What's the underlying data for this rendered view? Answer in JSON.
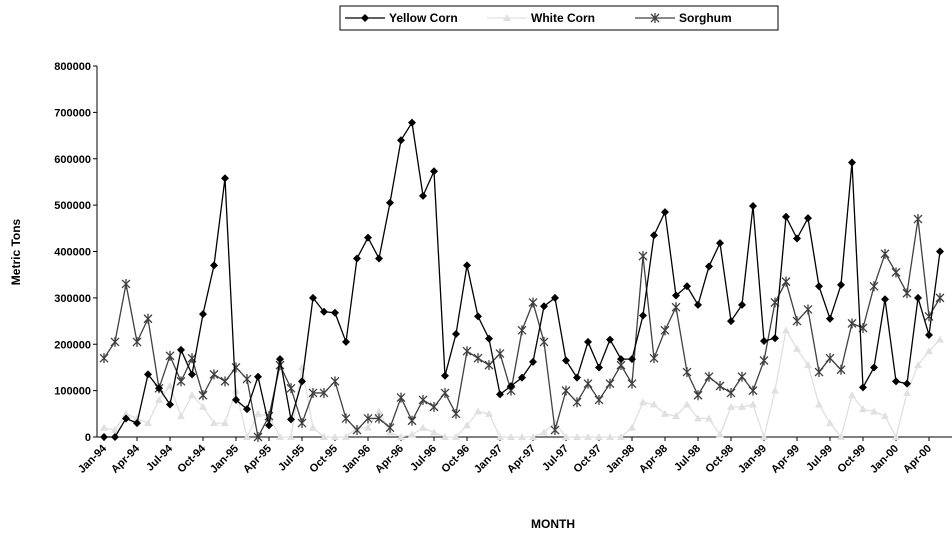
{
  "chart_data": {
    "type": "line",
    "x_label": "MONTH",
    "y_label": "Metric Tons",
    "categories": [
      "Jan-94",
      null,
      null,
      "Apr-94",
      null,
      null,
      "Jul-94",
      null,
      null,
      "Oct-94",
      null,
      null,
      "Jan-95",
      null,
      null,
      "Apr-95",
      null,
      null,
      "Jul-95",
      null,
      null,
      "Oct-95",
      null,
      null,
      "Jan-96",
      null,
      null,
      "Apr-96",
      null,
      null,
      "Jul-96",
      null,
      null,
      "Oct-96",
      null,
      null,
      "Jan-97",
      null,
      null,
      "Apr-97",
      null,
      null,
      "Jul-97",
      null,
      null,
      "Oct-97",
      null,
      null,
      "Jan-98",
      null,
      null,
      "Apr-98",
      null,
      null,
      "Jul-98",
      null,
      null,
      "Oct-98",
      null,
      null,
      "Jan-99",
      null,
      null,
      "Apr-99",
      null,
      null,
      "Jul-99",
      null,
      null,
      "Oct-99",
      null,
      null,
      "Jan-00",
      null,
      null,
      "Apr-00",
      null
    ],
    "series": [
      {
        "name": "Yellow Corn",
        "color": "#000000",
        "marker": "diamond",
        "values": [
          0,
          0,
          40000,
          30000,
          135000,
          105000,
          70000,
          188000,
          135000,
          265000,
          370000,
          558000,
          80000,
          60000,
          130000,
          25000,
          168000,
          38000,
          120000,
          300000,
          270000,
          268000,
          205000,
          385000,
          430000,
          385000,
          505000,
          640000,
          678000,
          520000,
          573000,
          132000,
          222000,
          370000,
          260000,
          212000,
          92000,
          110000,
          128000,
          162000,
          282000,
          300000,
          165000,
          128000,
          205000,
          150000,
          210000,
          168000,
          168000,
          262000,
          435000,
          485000,
          305000,
          325000,
          285000,
          368000,
          418000,
          250000,
          285000,
          498000,
          207000,
          213000,
          475000,
          428000,
          472000,
          325000,
          255000,
          328000,
          592000,
          107000,
          150000,
          297000,
          120000,
          115000,
          300000,
          220000,
          400000
        ]
      },
      {
        "name": "White Corn",
        "color": "#e0e0e0",
        "marker": "triangle",
        "values": [
          20000,
          15000,
          50000,
          40000,
          30000,
          80000,
          110000,
          45000,
          90000,
          65000,
          30000,
          30000,
          100000,
          0,
          50000,
          45000,
          0,
          0,
          150000,
          20000,
          0,
          0,
          0,
          20000,
          20000,
          55000,
          10000,
          0,
          5000,
          20000,
          10000,
          0,
          0,
          25000,
          55000,
          50000,
          0,
          0,
          0,
          0,
          10000,
          30000,
          0,
          0,
          0,
          0,
          0,
          0,
          20000,
          75000,
          70000,
          50000,
          45000,
          70000,
          40000,
          40000,
          5000,
          65000,
          65000,
          70000,
          0,
          100000,
          230000,
          190000,
          155000,
          70000,
          30000,
          0,
          90000,
          60000,
          55000,
          45000,
          0,
          95000,
          155000,
          185000,
          210000
        ]
      },
      {
        "name": "Sorghum",
        "color": "#404040",
        "marker": "asterisk",
        "values": [
          170000,
          205000,
          330000,
          205000,
          255000,
          105000,
          175000,
          120000,
          170000,
          90000,
          135000,
          120000,
          150000,
          125000,
          0,
          45000,
          155000,
          105000,
          30000,
          95000,
          95000,
          120000,
          40000,
          15000,
          40000,
          40000,
          20000,
          85000,
          35000,
          80000,
          65000,
          95000,
          50000,
          185000,
          170000,
          155000,
          180000,
          100000,
          230000,
          290000,
          205000,
          15000,
          100000,
          75000,
          115000,
          80000,
          115000,
          155000,
          115000,
          390000,
          170000,
          230000,
          280000,
          140000,
          90000,
          130000,
          110000,
          95000,
          130000,
          100000,
          165000,
          290000,
          335000,
          250000,
          275000,
          140000,
          170000,
          145000,
          245000,
          235000,
          325000,
          395000,
          355000,
          310000,
          470000,
          260000,
          300000
        ]
      }
    ],
    "ylim": [
      0,
      800000
    ],
    "yticks": [
      0,
      100000,
      200000,
      300000,
      400000,
      500000,
      600000,
      700000,
      800000
    ],
    "legend": "top"
  }
}
